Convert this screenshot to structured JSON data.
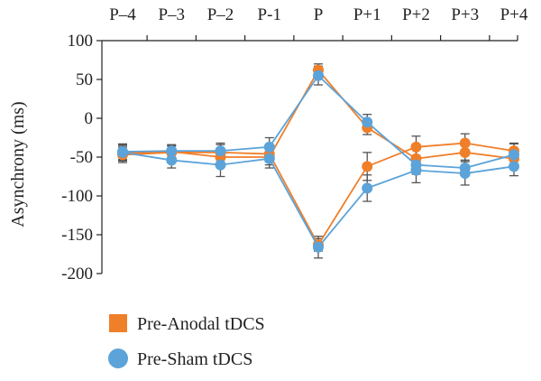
{
  "chart_data": {
    "type": "line",
    "title": "",
    "xlabel": "",
    "ylabel": "Asynchrony (ms)",
    "categories": [
      "P–4",
      "P–3",
      "P–2",
      "P-1",
      "P",
      "P+1",
      "P+2",
      "P+3",
      "P+4"
    ],
    "ylim": [
      -200,
      100
    ],
    "yticks": [
      100,
      50,
      0,
      -50,
      -100,
      -150,
      -200
    ],
    "xaxis_position": "top",
    "grid": false,
    "legend_position": "bottom-left",
    "series": [
      {
        "name": "Pre-Anodal tDCS",
        "color": "#f07f2a",
        "marker": "square",
        "lines": [
          {
            "values": [
              -45,
              -43,
              -50,
              -50,
              62,
              -12,
              -52,
              -44,
              -52
            ],
            "errors": [
              10,
              8,
              10,
              10,
              8,
              9,
              12,
              10,
              10
            ]
          },
          {
            "values": [
              -47,
              -44,
              -44,
              -46,
              -163,
              -62,
              -37,
              -32,
              -42
            ],
            "errors": [
              10,
              8,
              10,
              10,
              8,
              18,
              14,
              12,
              10
            ]
          }
        ]
      },
      {
        "name": "Pre-Sham tDCS",
        "color": "#5ba3d9",
        "marker": "circle",
        "lines": [
          {
            "values": [
              -43,
              -42,
              -42,
              -37,
              55,
              -5,
              -60,
              -64,
              -47
            ],
            "errors": [
              10,
              8,
              10,
              12,
              12,
              10,
              12,
              10,
              14
            ]
          },
          {
            "values": [
              -44,
              -54,
              -60,
              -52,
              -166,
              -90,
              -67,
              -71,
              -62
            ],
            "errors": [
              10,
              10,
              15,
              12,
              14,
              17,
              16,
              15,
              12
            ]
          }
        ]
      }
    ]
  }
}
